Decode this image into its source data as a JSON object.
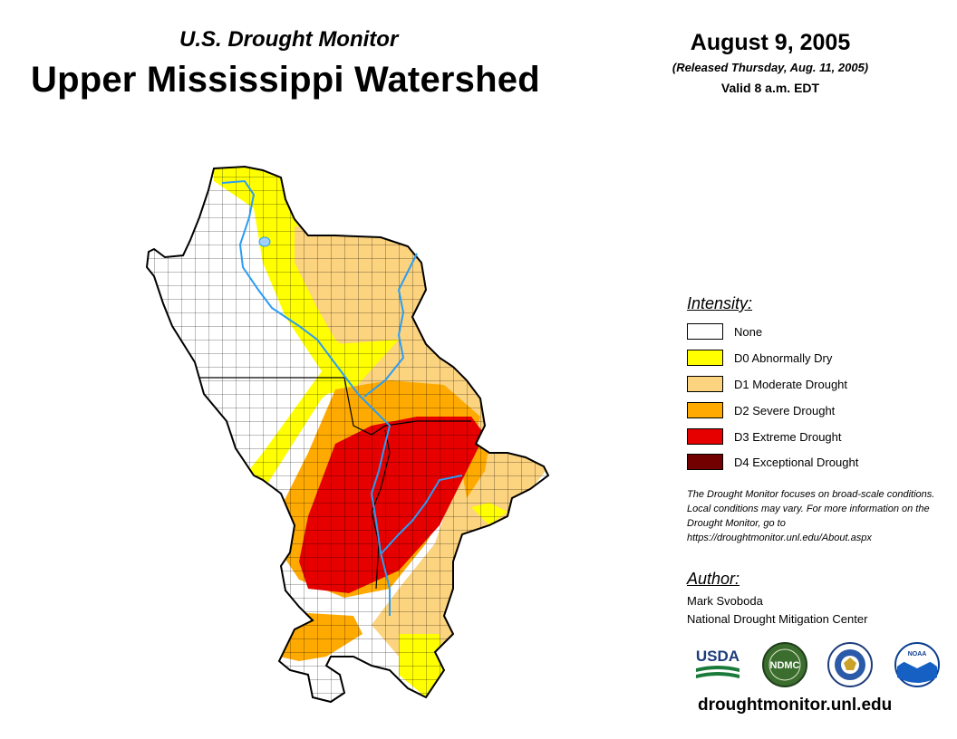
{
  "header": {
    "subtitle": "U.S. Drought Monitor",
    "title": "Upper Mississippi Watershed",
    "date": "August 9, 2005",
    "released": "(Released Thursday, Aug. 11, 2005)",
    "valid": "Valid 8 a.m. EDT"
  },
  "legend": {
    "heading": "Intensity:",
    "items": [
      {
        "label": "None",
        "color": "#ffffff"
      },
      {
        "label": "D0 Abnormally Dry",
        "color": "#ffff00"
      },
      {
        "label": "D1 Moderate Drought",
        "color": "#fcd37f"
      },
      {
        "label": "D2 Severe Drought",
        "color": "#ffaa00"
      },
      {
        "label": "D3 Extreme Drought",
        "color": "#e60000"
      },
      {
        "label": "D4 Exceptional Drought",
        "color": "#730000"
      }
    ]
  },
  "note": "The Drought Monitor focuses on broad-scale conditions. Local conditions may vary. For more information on the Drought Monitor, go to https://droughtmonitor.unl.edu/About.aspx",
  "author": {
    "heading": "Author:",
    "name": "Mark Svoboda",
    "organization": "National Drought Mitigation Center"
  },
  "logos": {
    "usda": "USDA",
    "ndmc": "NDMC",
    "commerce": "commerce-seal-icon",
    "noaa": "NOAA"
  },
  "footer_url": "droughtmonitor.unl.edu",
  "colors": {
    "river": "#2a9df4",
    "outline": "#000000"
  }
}
